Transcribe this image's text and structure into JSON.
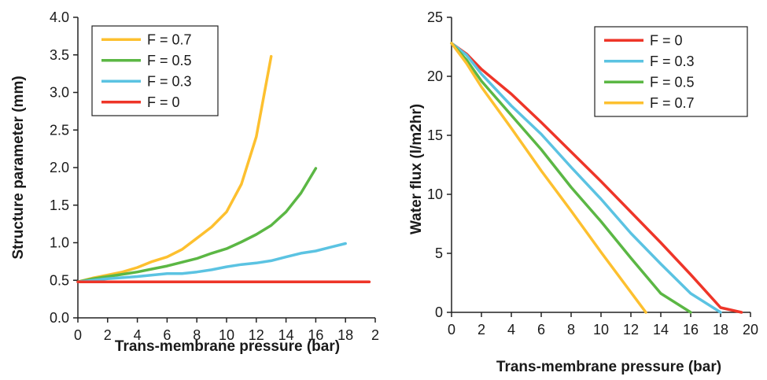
{
  "chart_data": [
    {
      "type": "line",
      "title": "",
      "xlabel": "Trans-membrane pressure (bar)",
      "ylabel": "Structure parameter (mm)",
      "xlim": [
        0,
        20
      ],
      "ylim": [
        0,
        4
      ],
      "x_ticks": [
        "0",
        "2",
        "4",
        "6",
        "8",
        "10",
        "12",
        "14",
        "16",
        "18",
        "2"
      ],
      "y_ticks": [
        "0.0",
        "0.5",
        "1.0",
        "1.5",
        "2.0",
        "2.5",
        "3.0",
        "3.5",
        "4.0"
      ],
      "grid": false,
      "legend_position": "top-left",
      "series": [
        {
          "name": "F = 0.7",
          "color": "#FDC02F",
          "x": [
            0,
            1,
            2,
            3,
            4,
            5,
            6,
            7,
            8,
            9,
            10,
            11,
            12,
            13
          ],
          "y": [
            0.48,
            0.53,
            0.57,
            0.61,
            0.67,
            0.75,
            0.81,
            0.91,
            1.06,
            1.21,
            1.41,
            1.78,
            2.41,
            3.48
          ]
        },
        {
          "name": "F = 0.5",
          "color": "#5BB744",
          "x": [
            0,
            1,
            2,
            3,
            4,
            5,
            6,
            7,
            8,
            9,
            10,
            11,
            12,
            13,
            14,
            15,
            16
          ],
          "y": [
            0.48,
            0.52,
            0.55,
            0.58,
            0.61,
            0.65,
            0.69,
            0.74,
            0.79,
            0.86,
            0.92,
            1.01,
            1.11,
            1.23,
            1.41,
            1.66,
            1.99
          ]
        },
        {
          "name": "F = 0.3",
          "color": "#5BC3E2",
          "x": [
            0,
            2,
            4,
            6,
            7,
            8,
            9,
            10,
            11,
            12,
            13,
            14,
            15,
            16,
            17,
            18
          ],
          "y": [
            0.48,
            0.52,
            0.55,
            0.59,
            0.59,
            0.61,
            0.64,
            0.68,
            0.71,
            0.73,
            0.76,
            0.81,
            0.86,
            0.89,
            0.94,
            0.99
          ]
        },
        {
          "name": "F = 0",
          "color": "#EE3528",
          "x": [
            0,
            19.6
          ],
          "y": [
            0.48,
            0.48
          ]
        }
      ]
    },
    {
      "type": "line",
      "title": "",
      "xlabel": "Trans-membrane pressure (bar)",
      "ylabel": "Water flux (l/m2hr)",
      "xlim": [
        0,
        20
      ],
      "ylim": [
        0,
        25
      ],
      "x_ticks": [
        "0",
        "2",
        "4",
        "6",
        "8",
        "10",
        "12",
        "14",
        "16",
        "18",
        "20"
      ],
      "y_ticks": [
        "0",
        "5",
        "10",
        "15",
        "20",
        "25"
      ],
      "grid": false,
      "legend_position": "top-right",
      "series": [
        {
          "name": "F = 0",
          "color": "#EE3528",
          "x": [
            0,
            1,
            2,
            4,
            6,
            8,
            10,
            12,
            14,
            16,
            18,
            19.4
          ],
          "y": [
            22.8,
            21.9,
            20.6,
            18.5,
            16.1,
            13.6,
            11.1,
            8.5,
            5.9,
            3.2,
            0.4,
            0
          ]
        },
        {
          "name": "F = 0.3",
          "color": "#5BC3E2",
          "x": [
            0,
            1,
            2,
            4,
            6,
            8,
            10,
            12,
            14,
            16,
            18
          ],
          "y": [
            22.8,
            21.8,
            20.2,
            17.5,
            15.1,
            12.3,
            9.6,
            6.7,
            4.1,
            1.6,
            0
          ]
        },
        {
          "name": "F = 0.5",
          "color": "#5BB744",
          "x": [
            0,
            1,
            2,
            4,
            6,
            8,
            10,
            12,
            14,
            16
          ],
          "y": [
            22.8,
            21.4,
            19.6,
            16.7,
            13.8,
            10.6,
            7.7,
            4.6,
            1.6,
            0
          ]
        },
        {
          "name": "F = 0.7",
          "color": "#FDC02F",
          "x": [
            0,
            1,
            2,
            4,
            6,
            8,
            10,
            12,
            13
          ],
          "y": [
            22.8,
            21.1,
            19.1,
            15.6,
            12.0,
            8.6,
            5.1,
            1.7,
            0
          ]
        }
      ]
    }
  ]
}
